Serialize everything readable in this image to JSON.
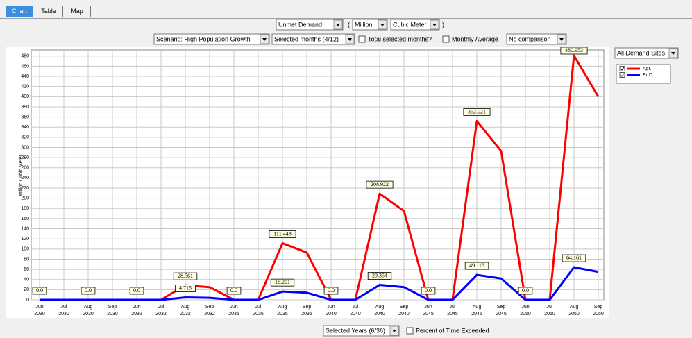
{
  "ui": {
    "tabs": [
      "Chart",
      "Table",
      "Map"
    ],
    "variable": "Unmet Demand",
    "open_paren": "(",
    "scale": "Million",
    "unit": "Cubic Meter",
    "close_paren": ")",
    "scenario": "Scenario: High Population Growth",
    "months": "Selected months (4/12)",
    "total_months": "Total selected months?",
    "monthly_average": "Monthly Average",
    "comparison": "No comparison",
    "sites": "All Demand Sites",
    "years": "Selected Years (6/36)",
    "percent_exceeded": "Percent of Time Exceeded"
  },
  "chart_data": {
    "type": "line",
    "y_label": "Million Cubic Meter",
    "categories": [
      [
        "Jun",
        "2030"
      ],
      [
        "Jul",
        "2030"
      ],
      [
        "Aug",
        "2030"
      ],
      [
        "Sep",
        "2030"
      ],
      [
        "Jun",
        "2032"
      ],
      [
        "Jul",
        "2032"
      ],
      [
        "Aug",
        "2032"
      ],
      [
        "Sep",
        "2032"
      ],
      [
        "Jun",
        "2035"
      ],
      [
        "Jul",
        "2035"
      ],
      [
        "Aug",
        "2035"
      ],
      [
        "Sep",
        "2035"
      ],
      [
        "Jun",
        "2040"
      ],
      [
        "Jul",
        "2040"
      ],
      [
        "Aug",
        "2040"
      ],
      [
        "Sep",
        "2040"
      ],
      [
        "Jun",
        "2045"
      ],
      [
        "Jul",
        "2045"
      ],
      [
        "Aug",
        "2045"
      ],
      [
        "Sep",
        "2045"
      ],
      [
        "Jun",
        "2050"
      ],
      [
        "Jul",
        "2050"
      ],
      [
        "Aug",
        "2050"
      ],
      [
        "Sep",
        "2050"
      ]
    ],
    "series": [
      {
        "name": "Agr.",
        "color": "#ff0000",
        "values": [
          0,
          0,
          0,
          0,
          0,
          0,
          28.561,
          25,
          0,
          0,
          111.446,
          93,
          0,
          0,
          208.922,
          175,
          0,
          0,
          352.021,
          293,
          0,
          0,
          480.953,
          400
        ],
        "value_labels": [
          "0.0",
          null,
          "0.0",
          null,
          "0.0",
          null,
          "28.561",
          null,
          "0.0",
          null,
          "111.446",
          null,
          "0.0",
          null,
          "208.922",
          null,
          "0.0",
          null,
          "352.021",
          null,
          "0.0",
          null,
          "480.953",
          null
        ]
      },
      {
        "name": "Er D.",
        "color": "#0000ff",
        "values": [
          0,
          0,
          0,
          0,
          0,
          0,
          4.715,
          4,
          0,
          0,
          16.201,
          14,
          0,
          0,
          29.354,
          25,
          0,
          0,
          49.116,
          42,
          0,
          0,
          64.161,
          55
        ],
        "value_labels": [
          null,
          null,
          null,
          null,
          null,
          null,
          "4.715",
          null,
          null,
          null,
          "16.201",
          null,
          null,
          null,
          "29.354",
          null,
          null,
          null,
          "49.116",
          null,
          null,
          null,
          "64.161",
          null
        ]
      }
    ],
    "ylim": [
      0,
      492
    ],
    "yticks": [
      0,
      20,
      40,
      60,
      80,
      100,
      120,
      140,
      160,
      180,
      200,
      220,
      240,
      260,
      280,
      300,
      320,
      340,
      360,
      380,
      400,
      420,
      440,
      460,
      480
    ],
    "grid": true,
    "legend": "right"
  }
}
